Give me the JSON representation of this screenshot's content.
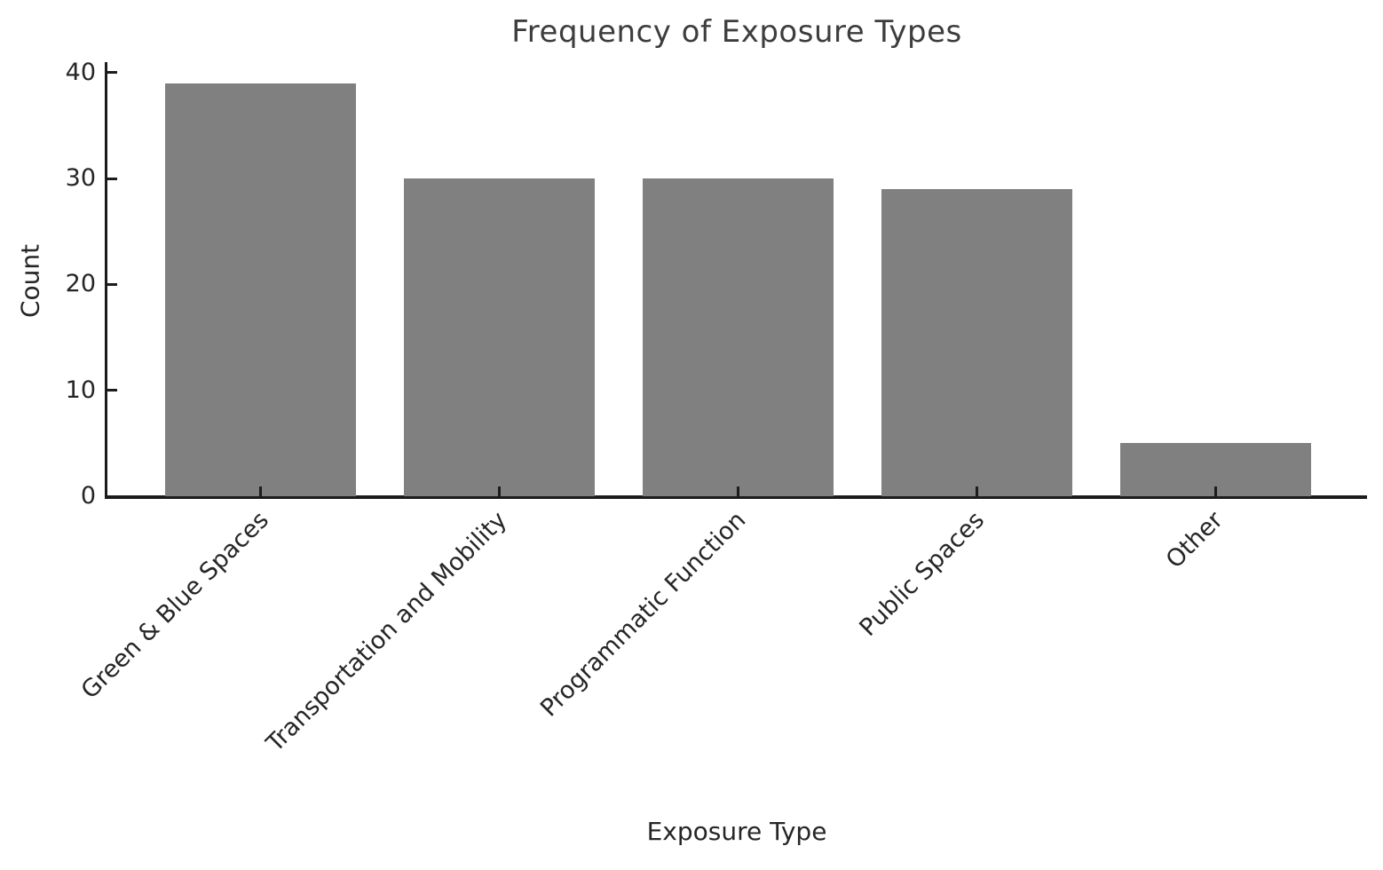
{
  "chart_data": {
    "type": "bar",
    "title": "Frequency of Exposure Types",
    "xlabel": "Exposure Type",
    "ylabel": "Count",
    "categories": [
      "Green & Blue Spaces",
      "Transportation and Mobility",
      "Programmatic Function",
      "Public Spaces",
      "Other"
    ],
    "values": [
      39,
      30,
      30,
      29,
      5
    ],
    "yticks": [
      0,
      10,
      20,
      30,
      40
    ],
    "ylim": [
      0,
      41
    ],
    "x_label_rotation_deg": 45,
    "grid": false,
    "legend": "none",
    "tick_direction": "in",
    "bar_color": "#808080",
    "axis_color": "#1c1c1c",
    "text_color": "#262626",
    "title_color": "#3d3d3d",
    "background_color": "#ffffff"
  }
}
